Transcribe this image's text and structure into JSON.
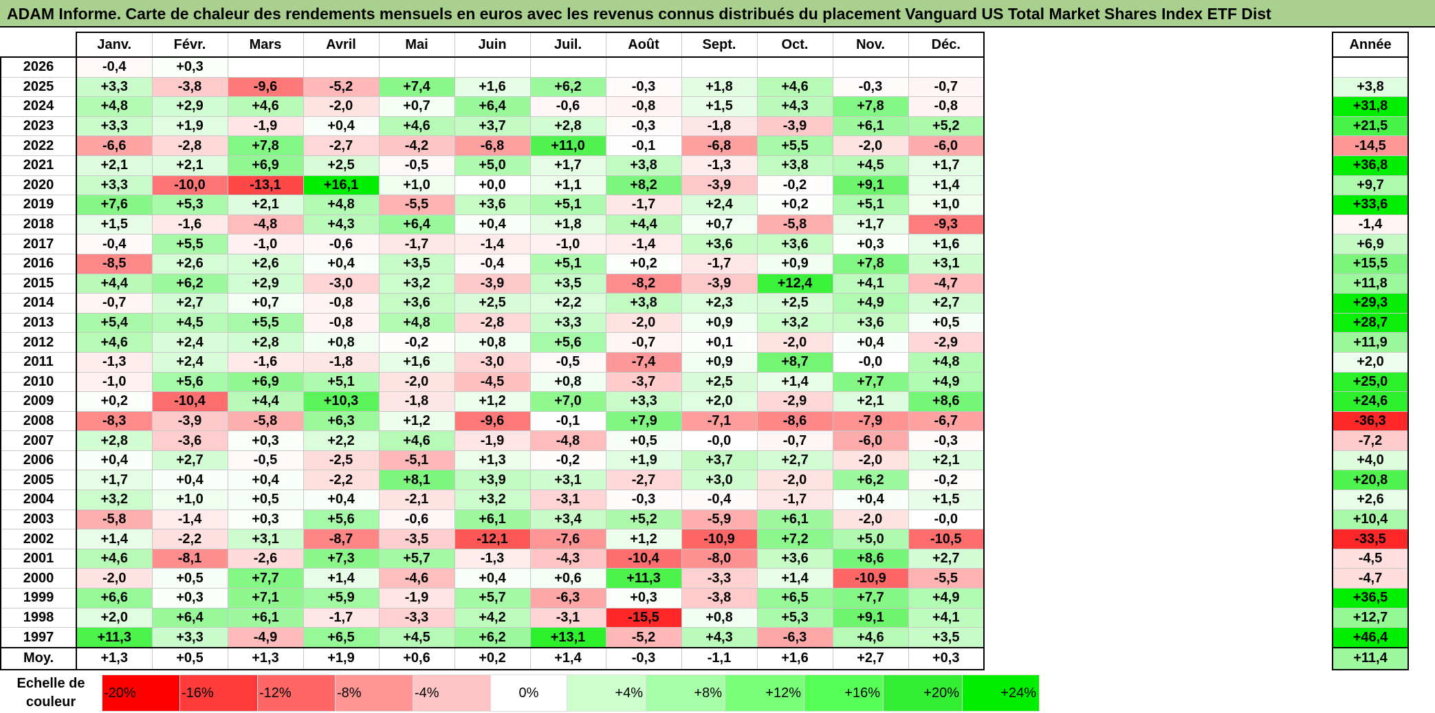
{
  "title": "ADAM Informe. Carte de chaleur des rendements mensuels en euros avec les revenus connus distribués du placement Vanguard US Total Market Shares Index ETF Dist",
  "year_header": "Année",
  "avg_label": "Moy.",
  "scale_label_line1": "Echelle de",
  "scale_label_line2": "couleur",
  "scale": [
    "-20%",
    "-16%",
    "-12%",
    "-8%",
    "-4%",
    "0%",
    "+4%",
    "+8%",
    "+12%",
    "+16%",
    "+20%",
    "+24%"
  ],
  "colors": {
    "title_bg": "#a9d08e",
    "negative_max": "#ff2020",
    "neutral": "#ffffff",
    "positive_max": "#00ee00"
  },
  "chart_data": {
    "type": "heatmap",
    "title": "ADAM Informe. Carte de chaleur des rendements mensuels en euros avec les revenus connus distribués du placement Vanguard US Total Market Shares Index ETF Dist",
    "months": [
      "Janv.",
      "Févr.",
      "Mars",
      "Avril",
      "Mai",
      "Juin",
      "Juil.",
      "Août",
      "Sept.",
      "Oct.",
      "Nov.",
      "Déc."
    ],
    "rows": [
      {
        "year": "2026",
        "m": [
          "-0,4",
          "+0,3",
          "",
          "",
          "",
          "",
          "",
          "",
          "",
          "",
          "",
          ""
        ],
        "annual": ""
      },
      {
        "year": "2025",
        "m": [
          "+3,3",
          "-3,8",
          "-9,6",
          "-5,2",
          "+7,4",
          "+1,6",
          "+6,2",
          "-0,3",
          "+1,8",
          "+4,6",
          "-0,3",
          "-0,7"
        ],
        "annual": "+3,8"
      },
      {
        "year": "2024",
        "m": [
          "+4,8",
          "+2,9",
          "+4,6",
          "-2,0",
          "+0,7",
          "+6,4",
          "-0,6",
          "-0,8",
          "+1,5",
          "+4,3",
          "+7,8",
          "-0,8"
        ],
        "annual": "+31,8"
      },
      {
        "year": "2023",
        "m": [
          "+3,3",
          "+1,9",
          "-1,9",
          "+0,4",
          "+4,6",
          "+3,7",
          "+2,8",
          "-0,3",
          "-1,8",
          "-3,9",
          "+6,1",
          "+5,2"
        ],
        "annual": "+21,5"
      },
      {
        "year": "2022",
        "m": [
          "-6,6",
          "-2,8",
          "+7,8",
          "-2,7",
          "-4,2",
          "-6,8",
          "+11,0",
          "-0,1",
          "-6,8",
          "+5,5",
          "-2,0",
          "-6,0"
        ],
        "annual": "-14,5"
      },
      {
        "year": "2021",
        "m": [
          "+2,1",
          "+2,1",
          "+6,9",
          "+2,5",
          "-0,5",
          "+5,0",
          "+1,7",
          "+3,8",
          "-1,3",
          "+3,8",
          "+4,5",
          "+1,7"
        ],
        "annual": "+36,8"
      },
      {
        "year": "2020",
        "m": [
          "+3,3",
          "-10,0",
          "-13,1",
          "+16,1",
          "+1,0",
          "+0,0",
          "+1,1",
          "+8,2",
          "-3,9",
          "-0,2",
          "+9,1",
          "+1,4"
        ],
        "annual": "+9,7"
      },
      {
        "year": "2019",
        "m": [
          "+7,6",
          "+5,3",
          "+2,1",
          "+4,8",
          "-5,5",
          "+3,6",
          "+5,1",
          "-1,7",
          "+2,4",
          "+0,2",
          "+5,1",
          "+1,0"
        ],
        "annual": "+33,6"
      },
      {
        "year": "2018",
        "m": [
          "+1,5",
          "-1,6",
          "-4,8",
          "+4,3",
          "+6,4",
          "+0,4",
          "+1,8",
          "+4,4",
          "+0,7",
          "-5,8",
          "+1,7",
          "-9,3"
        ],
        "annual": "-1,4"
      },
      {
        "year": "2017",
        "m": [
          "-0,4",
          "+5,5",
          "-1,0",
          "-0,6",
          "-1,7",
          "-1,4",
          "-1,0",
          "-1,4",
          "+3,6",
          "+3,6",
          "+0,3",
          "+1,6"
        ],
        "annual": "+6,9"
      },
      {
        "year": "2016",
        "m": [
          "-8,5",
          "+2,6",
          "+2,6",
          "+0,4",
          "+3,5",
          "-0,4",
          "+5,1",
          "+0,2",
          "-1,7",
          "+0,9",
          "+7,8",
          "+3,1"
        ],
        "annual": "+15,5"
      },
      {
        "year": "2015",
        "m": [
          "+4,4",
          "+6,2",
          "+2,9",
          "-3,0",
          "+3,2",
          "-3,9",
          "+3,5",
          "-8,2",
          "-3,9",
          "+12,4",
          "+4,1",
          "-4,7"
        ],
        "annual": "+11,8"
      },
      {
        "year": "2014",
        "m": [
          "-0,7",
          "+2,7",
          "+0,7",
          "-0,8",
          "+3,6",
          "+2,5",
          "+2,2",
          "+3,8",
          "+2,3",
          "+2,5",
          "+4,9",
          "+2,7"
        ],
        "annual": "+29,3"
      },
      {
        "year": "2013",
        "m": [
          "+5,4",
          "+4,5",
          "+5,5",
          "-0,8",
          "+4,8",
          "-2,8",
          "+3,3",
          "-2,0",
          "+0,9",
          "+3,2",
          "+3,6",
          "+0,5"
        ],
        "annual": "+28,7"
      },
      {
        "year": "2012",
        "m": [
          "+4,6",
          "+2,4",
          "+2,8",
          "+0,8",
          "-0,2",
          "+0,8",
          "+5,6",
          "-0,7",
          "+0,1",
          "-2,0",
          "+0,4",
          "-2,9"
        ],
        "annual": "+11,9"
      },
      {
        "year": "2011",
        "m": [
          "-1,3",
          "+2,4",
          "-1,6",
          "-1,8",
          "+1,6",
          "-3,0",
          "-0,5",
          "-7,4",
          "+0,9",
          "+8,7",
          "-0,0",
          "+4,8"
        ],
        "annual": "+2,0"
      },
      {
        "year": "2010",
        "m": [
          "-1,0",
          "+5,6",
          "+6,9",
          "+5,1",
          "-2,0",
          "-4,5",
          "+0,8",
          "-3,7",
          "+2,5",
          "+1,4",
          "+7,7",
          "+4,9"
        ],
        "annual": "+25,0"
      },
      {
        "year": "2009",
        "m": [
          "+0,2",
          "-10,4",
          "+4,4",
          "+10,3",
          "-1,8",
          "+1,2",
          "+7,0",
          "+3,3",
          "+2,0",
          "-2,9",
          "+2,1",
          "+8,6"
        ],
        "annual": "+24,6"
      },
      {
        "year": "2008",
        "m": [
          "-8,3",
          "-3,9",
          "-5,8",
          "+6,3",
          "+1,2",
          "-9,6",
          "-0,1",
          "+7,9",
          "-7,1",
          "-8,6",
          "-7,9",
          "-6,7"
        ],
        "annual": "-36,3"
      },
      {
        "year": "2007",
        "m": [
          "+2,8",
          "-3,6",
          "+0,3",
          "+2,2",
          "+4,6",
          "-1,9",
          "-4,8",
          "+0,5",
          "-0,0",
          "-0,7",
          "-6,0",
          "-0,3"
        ],
        "annual": "-7,2"
      },
      {
        "year": "2006",
        "m": [
          "+0,4",
          "+2,7",
          "-0,5",
          "-2,5",
          "-5,1",
          "+1,3",
          "-0,2",
          "+1,9",
          "+3,7",
          "+2,7",
          "-2,0",
          "+2,1"
        ],
        "annual": "+4,0"
      },
      {
        "year": "2005",
        "m": [
          "+1,7",
          "+0,4",
          "+0,4",
          "-2,2",
          "+8,1",
          "+3,9",
          "+3,1",
          "-2,7",
          "+3,0",
          "-2,0",
          "+6,2",
          "-0,2"
        ],
        "annual": "+20,8"
      },
      {
        "year": "2004",
        "m": [
          "+3,2",
          "+1,0",
          "+0,5",
          "+0,4",
          "-2,1",
          "+3,2",
          "-3,1",
          "-0,3",
          "-0,4",
          "-1,7",
          "+0,4",
          "+1,5"
        ],
        "annual": "+2,6"
      },
      {
        "year": "2003",
        "m": [
          "-5,8",
          "-1,4",
          "+0,3",
          "+5,6",
          "-0,6",
          "+6,1",
          "+3,4",
          "+5,2",
          "-5,9",
          "+6,1",
          "-2,0",
          "-0,0"
        ],
        "annual": "+10,4"
      },
      {
        "year": "2002",
        "m": [
          "+1,4",
          "-2,2",
          "+3,1",
          "-8,7",
          "-3,5",
          "-12,1",
          "-7,6",
          "+1,2",
          "-10,9",
          "+7,2",
          "+5,0",
          "-10,5"
        ],
        "annual": "-33,5"
      },
      {
        "year": "2001",
        "m": [
          "+4,6",
          "-8,1",
          "-2,6",
          "+7,3",
          "+5,7",
          "-1,3",
          "-4,3",
          "-10,4",
          "-8,0",
          "+3,6",
          "+8,6",
          "+2,7"
        ],
        "annual": "-4,5"
      },
      {
        "year": "2000",
        "m": [
          "-2,0",
          "+0,5",
          "+7,7",
          "+1,4",
          "-4,6",
          "+0,4",
          "+0,6",
          "+11,3",
          "-3,3",
          "+1,4",
          "-10,9",
          "-5,5"
        ],
        "annual": "-4,7"
      },
      {
        "year": "1999",
        "m": [
          "+6,6",
          "+0,3",
          "+7,1",
          "+5,9",
          "-1,9",
          "+5,7",
          "-6,3",
          "+0,3",
          "-3,8",
          "+6,5",
          "+7,7",
          "+4,9"
        ],
        "annual": "+36,5"
      },
      {
        "year": "1998",
        "m": [
          "+2,0",
          "+6,4",
          "+6,1",
          "-1,7",
          "-3,3",
          "+4,2",
          "-3,1",
          "-15,5",
          "+0,8",
          "+5,3",
          "+9,1",
          "+4,1"
        ],
        "annual": "+12,7"
      },
      {
        "year": "1997",
        "m": [
          "+11,3",
          "+3,3",
          "-4,9",
          "+6,5",
          "+4,5",
          "+6,2",
          "+13,1",
          "-5,2",
          "+4,3",
          "-6,3",
          "+4,6",
          "+3,5"
        ],
        "annual": "+46,4"
      }
    ],
    "averages": [
      "+1,3",
      "+0,5",
      "+1,3",
      "+1,9",
      "+0,6",
      "+0,2",
      "+1,4",
      "-0,3",
      "-1,1",
      "+1,6",
      "+2,7",
      "+0,3"
    ],
    "average_annual": "+11,4"
  }
}
